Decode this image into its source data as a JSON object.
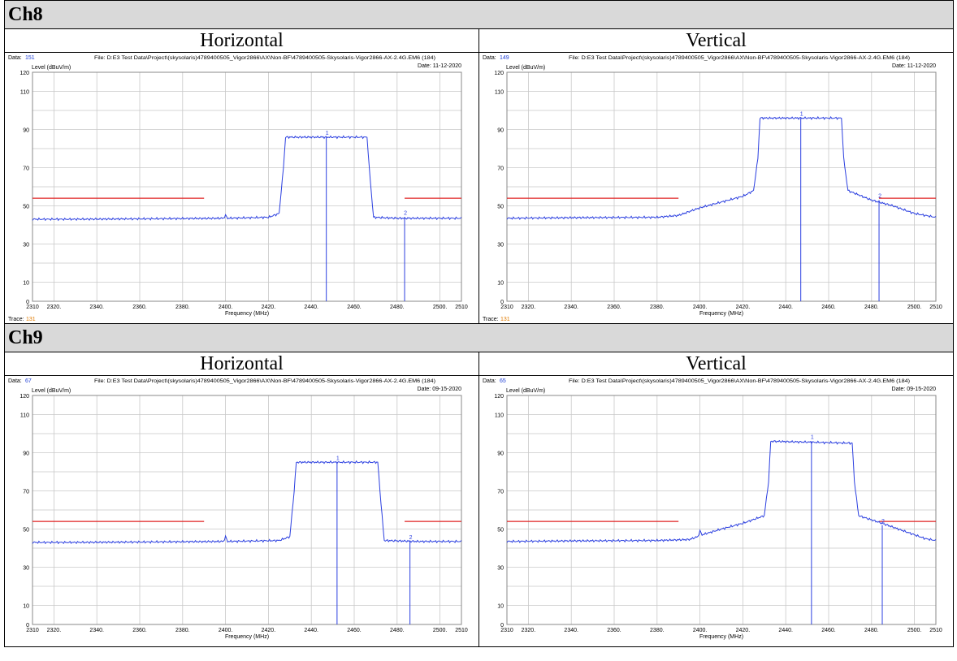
{
  "channels": [
    {
      "label": "Ch8",
      "plots": [
        {
          "polarization": "Horizontal",
          "data_label": "Data:",
          "data_value": "151",
          "file": "File: D:E3 Test Data\\Project\\(skysolaris)4789400505_Vigor2866\\AX\\Non-BF\\4789400505-Skysolaris-Vigor2866-AX-2.4G.EM6  (184)",
          "date": "Date: 11-12-2020",
          "trace_label": "Trace:",
          "trace_value": "131"
        },
        {
          "polarization": "Vertical",
          "data_label": "Data:",
          "data_value": "149",
          "file": "File: D:E3 Test Data\\Project\\(skysolaris)4789400505_Vigor2866\\AX\\Non-BF\\4789400505-Skysolaris-Vigor2866-AX-2.4G.EM6  (184)",
          "date": "Date: 11-12-2020",
          "trace_label": "Trace:",
          "trace_value": "131"
        }
      ]
    },
    {
      "label": "Ch9",
      "plots": [
        {
          "polarization": "Horizontal",
          "data_label": "Data:",
          "data_value": "67",
          "file": "File: D:E3 Test Data\\Project\\(skysolaris)4789400505_Vigor2866\\AX\\Non-BF\\4789400505-Skysolaris-Vigor2866-AX-2.4G.EM6  (184)",
          "date": "Date: 09-15-2020"
        },
        {
          "polarization": "Vertical",
          "data_label": "Data:",
          "data_value": "65",
          "file": "File: D:E3 Test Data\\Project\\(skysolaris)4789400505_Vigor2866\\AX\\Non-BF\\4789400505-Skysolaris-Vigor2866-AX-2.4G.EM6  (184)",
          "date": "Date: 09-15-2020"
        }
      ]
    }
  ],
  "chart_data": [
    {
      "type": "line",
      "channel": "Ch8",
      "polarization": "Horizontal",
      "xlabel": "Frequency (MHz)",
      "ylabel": "Level (dBuV/m)",
      "xlim": [
        2310,
        2510
      ],
      "ylim": [
        0,
        120
      ],
      "x_ticks": [
        "2310",
        "2320.",
        "2340.",
        "2360.",
        "2380.",
        "2400.",
        "2420.",
        "2440.",
        "2460.",
        "2480.",
        "2500.",
        "2510"
      ],
      "y_ticks": [
        "0",
        "10",
        "30",
        "50",
        "70",
        "90",
        "110",
        "120"
      ],
      "limit_lines": [
        {
          "x": [
            2310,
            2390
          ],
          "y": 54
        },
        {
          "x": [
            2483.5,
            2510
          ],
          "y": 54
        }
      ],
      "trace": {
        "x": [
          2310,
          2330,
          2360,
          2399,
          2400,
          2401,
          2420,
          2425,
          2427,
          2428,
          2466,
          2467,
          2469,
          2480,
          2500,
          2510
        ],
        "y": [
          43,
          43,
          43.2,
          43.5,
          45,
          43.5,
          44,
          46,
          70,
          86,
          86,
          70,
          44,
          43.5,
          43.5,
          43.5
        ]
      },
      "markers": [
        {
          "label": "1",
          "x": 2447,
          "y": 86
        },
        {
          "label": "2",
          "x": 2483.5,
          "y": 44
        }
      ]
    },
    {
      "type": "line",
      "channel": "Ch8",
      "polarization": "Vertical",
      "xlabel": "Frequency (MHz)",
      "ylabel": "Level (dBuV/m)",
      "xlim": [
        2310,
        2510
      ],
      "ylim": [
        0,
        120
      ],
      "x_ticks": [
        "2310",
        "2320.",
        "2340.",
        "2360.",
        "2380.",
        "2400.",
        "2420.",
        "2440.",
        "2460.",
        "2480.",
        "2500.",
        "2510"
      ],
      "y_ticks": [
        "0",
        "10",
        "30",
        "50",
        "70",
        "90",
        "110",
        "120"
      ],
      "limit_lines": [
        {
          "x": [
            2310,
            2390
          ],
          "y": 54
        },
        {
          "x": [
            2483.5,
            2510
          ],
          "y": 54
        }
      ],
      "trace": {
        "x": [
          2310,
          2340,
          2380,
          2390,
          2400,
          2410,
          2420,
          2425,
          2427,
          2428,
          2466,
          2467,
          2469,
          2480,
          2490,
          2500,
          2510
        ],
        "y": [
          43.5,
          43.8,
          44,
          45,
          49,
          52,
          55,
          58,
          75,
          96,
          96,
          75,
          58,
          53,
          50,
          46,
          44
        ]
      },
      "markers": [
        {
          "label": "1",
          "x": 2447,
          "y": 96
        },
        {
          "label": "2",
          "x": 2483.5,
          "y": 53
        }
      ]
    },
    {
      "type": "line",
      "channel": "Ch9",
      "polarization": "Horizontal",
      "xlabel": "Frequency (MHz)",
      "ylabel": "Level (dBuV/m)",
      "xlim": [
        2310,
        2510
      ],
      "ylim": [
        0,
        120
      ],
      "x_ticks": [
        "2310",
        "2320.",
        "2340.",
        "2360.",
        "2380.",
        "2400.",
        "2420.",
        "2440.",
        "2460.",
        "2480.",
        "2500.",
        "2510"
      ],
      "y_ticks": [
        "0",
        "10",
        "30",
        "50",
        "70",
        "90",
        "110",
        "120"
      ],
      "limit_lines": [
        {
          "x": [
            2310,
            2390
          ],
          "y": 54
        },
        {
          "x": [
            2483.5,
            2510
          ],
          "y": 54
        }
      ],
      "trace": {
        "x": [
          2310,
          2330,
          2360,
          2399,
          2400,
          2401,
          2425,
          2430,
          2432,
          2433,
          2471,
          2472,
          2474,
          2490,
          2510
        ],
        "y": [
          43,
          43,
          43.2,
          43.5,
          46,
          43.5,
          44,
          46,
          70,
          85,
          85,
          70,
          44,
          43.5,
          43.5
        ]
      },
      "markers": [
        {
          "label": "1",
          "x": 2452,
          "y": 85
        },
        {
          "label": "2",
          "x": 2486,
          "y": 43.5
        }
      ]
    },
    {
      "type": "line",
      "channel": "Ch9",
      "polarization": "Vertical",
      "xlabel": "Frequency (MHz)",
      "ylabel": "Level (dBuV/m)",
      "xlim": [
        2310,
        2510
      ],
      "ylim": [
        0,
        120
      ],
      "x_ticks": [
        "2310",
        "2320.",
        "2340.",
        "2360.",
        "2380.",
        "2400.",
        "2420.",
        "2440.",
        "2460.",
        "2480.",
        "2500.",
        "2510"
      ],
      "y_ticks": [
        "0",
        "10",
        "30",
        "50",
        "70",
        "90",
        "110",
        "120"
      ],
      "limit_lines": [
        {
          "x": [
            2310,
            2390
          ],
          "y": 54
        },
        {
          "x": [
            2483.5,
            2510
          ],
          "y": 54
        }
      ],
      "trace": {
        "x": [
          2310,
          2340,
          2380,
          2395,
          2399,
          2400,
          2401,
          2410,
          2420,
          2430,
          2432,
          2433,
          2471,
          2472,
          2474,
          2485,
          2495,
          2505,
          2510
        ],
        "y": [
          43.5,
          43.8,
          44,
          44.5,
          46,
          49,
          47,
          50,
          53,
          57,
          75,
          96,
          95,
          75,
          57,
          53,
          49,
          45,
          44
        ]
      },
      "markers": [
        {
          "label": "1",
          "x": 2452,
          "y": 96
        },
        {
          "label": "2",
          "x": 2485,
          "y": 52
        }
      ]
    }
  ]
}
